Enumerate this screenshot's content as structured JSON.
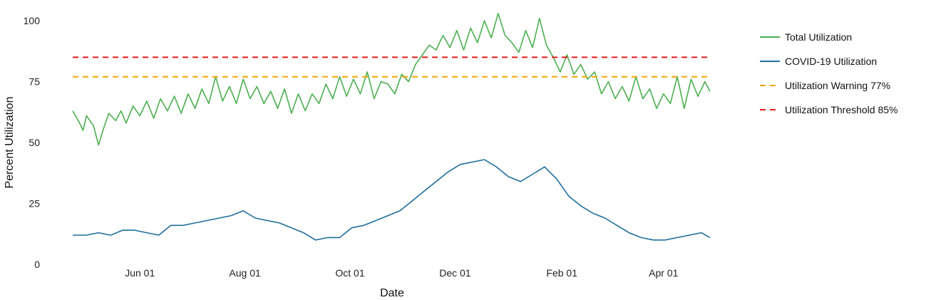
{
  "chart_data": {
    "type": "line",
    "title": "",
    "xlabel": "Date",
    "ylabel": "Percent Utilization",
    "x_range": [
      "2020-04-23",
      "2021-04-28"
    ],
    "ylim": [
      0,
      105
    ],
    "grid": false,
    "legend_position": "right",
    "y_ticks": [
      0,
      25,
      50,
      75,
      100
    ],
    "x_ticks": [
      {
        "date": "2020-06-01",
        "label": "Jun 01"
      },
      {
        "date": "2020-08-01",
        "label": "Aug 01"
      },
      {
        "date": "2020-10-01",
        "label": "Oct 01"
      },
      {
        "date": "2020-12-01",
        "label": "Dec 01"
      },
      {
        "date": "2021-02-01",
        "label": "Feb 01"
      },
      {
        "date": "2021-04-01",
        "label": "Apr 01"
      }
    ],
    "series": [
      {
        "name": "Total Utilization",
        "color": "#4caf50",
        "dash": "solid",
        "points": [
          [
            "2020-04-23",
            63
          ],
          [
            "2020-04-27",
            58
          ],
          [
            "2020-04-29",
            55
          ],
          [
            "2020-05-01",
            61
          ],
          [
            "2020-05-05",
            57
          ],
          [
            "2020-05-08",
            49
          ],
          [
            "2020-05-11",
            56
          ],
          [
            "2020-05-14",
            62
          ],
          [
            "2020-05-18",
            59
          ],
          [
            "2020-05-21",
            63
          ],
          [
            "2020-05-24",
            58
          ],
          [
            "2020-05-28",
            65
          ],
          [
            "2020-06-01",
            61
          ],
          [
            "2020-06-05",
            67
          ],
          [
            "2020-06-09",
            60
          ],
          [
            "2020-06-13",
            68
          ],
          [
            "2020-06-17",
            63
          ],
          [
            "2020-06-21",
            69
          ],
          [
            "2020-06-25",
            62
          ],
          [
            "2020-06-29",
            70
          ],
          [
            "2020-07-03",
            64
          ],
          [
            "2020-07-07",
            72
          ],
          [
            "2020-07-11",
            66
          ],
          [
            "2020-07-15",
            77
          ],
          [
            "2020-07-19",
            67
          ],
          [
            "2020-07-23",
            73
          ],
          [
            "2020-07-27",
            66
          ],
          [
            "2020-07-31",
            76
          ],
          [
            "2020-08-04",
            68
          ],
          [
            "2020-08-08",
            73
          ],
          [
            "2020-08-12",
            66
          ],
          [
            "2020-08-16",
            71
          ],
          [
            "2020-08-20",
            64
          ],
          [
            "2020-08-24",
            72
          ],
          [
            "2020-08-28",
            62
          ],
          [
            "2020-09-01",
            70
          ],
          [
            "2020-09-05",
            63
          ],
          [
            "2020-09-09",
            70
          ],
          [
            "2020-09-13",
            66
          ],
          [
            "2020-09-17",
            74
          ],
          [
            "2020-09-21",
            68
          ],
          [
            "2020-09-25",
            77
          ],
          [
            "2020-09-29",
            69
          ],
          [
            "2020-10-03",
            76
          ],
          [
            "2020-10-07",
            70
          ],
          [
            "2020-10-11",
            79
          ],
          [
            "2020-10-15",
            68
          ],
          [
            "2020-10-19",
            75
          ],
          [
            "2020-10-23",
            74
          ],
          [
            "2020-10-27",
            70
          ],
          [
            "2020-10-31",
            78
          ],
          [
            "2020-11-04",
            75
          ],
          [
            "2020-11-08",
            82
          ],
          [
            "2020-11-12",
            86
          ],
          [
            "2020-11-16",
            90
          ],
          [
            "2020-11-20",
            88
          ],
          [
            "2020-11-24",
            94
          ],
          [
            "2020-11-28",
            89
          ],
          [
            "2020-12-02",
            96
          ],
          [
            "2020-12-06",
            88
          ],
          [
            "2020-12-10",
            97
          ],
          [
            "2020-12-14",
            91
          ],
          [
            "2020-12-18",
            100
          ],
          [
            "2020-12-22",
            93
          ],
          [
            "2020-12-26",
            103
          ],
          [
            "2020-12-30",
            94
          ],
          [
            "2021-01-03",
            91
          ],
          [
            "2021-01-07",
            87
          ],
          [
            "2021-01-11",
            96
          ],
          [
            "2021-01-15",
            89
          ],
          [
            "2021-01-19",
            101
          ],
          [
            "2021-01-23",
            90
          ],
          [
            "2021-01-27",
            85
          ],
          [
            "2021-01-31",
            79
          ],
          [
            "2021-02-04",
            86
          ],
          [
            "2021-02-08",
            78
          ],
          [
            "2021-02-12",
            82
          ],
          [
            "2021-02-16",
            76
          ],
          [
            "2021-02-20",
            79
          ],
          [
            "2021-02-24",
            70
          ],
          [
            "2021-02-28",
            75
          ],
          [
            "2021-03-04",
            68
          ],
          [
            "2021-03-08",
            73
          ],
          [
            "2021-03-12",
            67
          ],
          [
            "2021-03-16",
            77
          ],
          [
            "2021-03-20",
            68
          ],
          [
            "2021-03-24",
            72
          ],
          [
            "2021-03-28",
            64
          ],
          [
            "2021-04-01",
            70
          ],
          [
            "2021-04-05",
            66
          ],
          [
            "2021-04-09",
            77
          ],
          [
            "2021-04-13",
            64
          ],
          [
            "2021-04-17",
            76
          ],
          [
            "2021-04-21",
            69
          ],
          [
            "2021-04-25",
            75
          ],
          [
            "2021-04-28",
            71
          ]
        ]
      },
      {
        "name": "COVID-19 Utilization",
        "color": "#1f6e9c",
        "dash": "solid",
        "points": [
          [
            "2020-04-23",
            12
          ],
          [
            "2020-05-01",
            12
          ],
          [
            "2020-05-08",
            13
          ],
          [
            "2020-05-15",
            12
          ],
          [
            "2020-05-22",
            14
          ],
          [
            "2020-05-29",
            14
          ],
          [
            "2020-06-05",
            13
          ],
          [
            "2020-06-12",
            12
          ],
          [
            "2020-06-19",
            16
          ],
          [
            "2020-06-26",
            16
          ],
          [
            "2020-07-03",
            17
          ],
          [
            "2020-07-10",
            18
          ],
          [
            "2020-07-17",
            19
          ],
          [
            "2020-07-24",
            20
          ],
          [
            "2020-07-31",
            22
          ],
          [
            "2020-08-07",
            19
          ],
          [
            "2020-08-14",
            18
          ],
          [
            "2020-08-21",
            17
          ],
          [
            "2020-08-28",
            15
          ],
          [
            "2020-09-04",
            13
          ],
          [
            "2020-09-11",
            10
          ],
          [
            "2020-09-18",
            11
          ],
          [
            "2020-09-25",
            11
          ],
          [
            "2020-10-02",
            15
          ],
          [
            "2020-10-09",
            16
          ],
          [
            "2020-10-16",
            18
          ],
          [
            "2020-10-23",
            20
          ],
          [
            "2020-10-30",
            22
          ],
          [
            "2020-11-06",
            26
          ],
          [
            "2020-11-13",
            30
          ],
          [
            "2020-11-20",
            34
          ],
          [
            "2020-11-27",
            38
          ],
          [
            "2020-12-04",
            41
          ],
          [
            "2020-12-11",
            42
          ],
          [
            "2020-12-18",
            43
          ],
          [
            "2020-12-25",
            40
          ],
          [
            "2021-01-01",
            36
          ],
          [
            "2021-01-08",
            34
          ],
          [
            "2021-01-15",
            37
          ],
          [
            "2021-01-22",
            40
          ],
          [
            "2021-01-29",
            35
          ],
          [
            "2021-02-05",
            28
          ],
          [
            "2021-02-12",
            24
          ],
          [
            "2021-02-19",
            21
          ],
          [
            "2021-02-26",
            19
          ],
          [
            "2021-03-05",
            16
          ],
          [
            "2021-03-12",
            13
          ],
          [
            "2021-03-19",
            11
          ],
          [
            "2021-03-26",
            10
          ],
          [
            "2021-04-02",
            10
          ],
          [
            "2021-04-09",
            11
          ],
          [
            "2021-04-16",
            12
          ],
          [
            "2021-04-23",
            13
          ],
          [
            "2021-04-28",
            11
          ]
        ]
      },
      {
        "name": "Utilization Warning 77%",
        "color": "#f0a500",
        "dash": "dashed",
        "points": [
          [
            "2020-04-23",
            77
          ],
          [
            "2021-04-28",
            77
          ]
        ]
      },
      {
        "name": "Utilization Threshold 85%",
        "color": "#e41a1c",
        "dash": "dashed",
        "points": [
          [
            "2020-04-23",
            85
          ],
          [
            "2021-04-28",
            85
          ]
        ]
      }
    ]
  }
}
